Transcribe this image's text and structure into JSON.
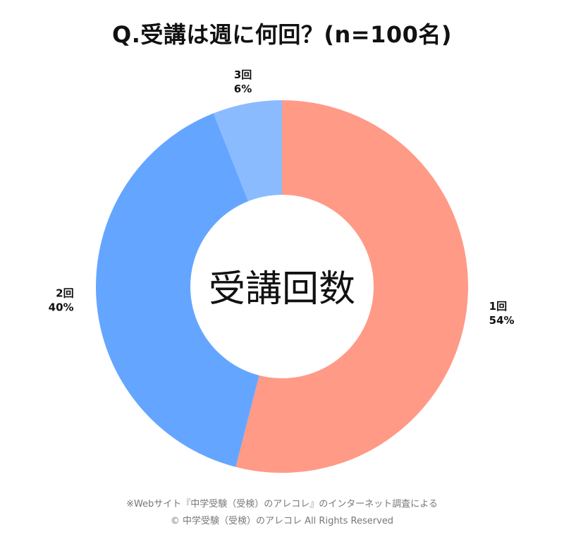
{
  "chart_data": {
    "type": "pie",
    "title": "Q.受講は週に何回？(n=100名)",
    "center_label": "受講回数",
    "slices": [
      {
        "label": "1回",
        "value": 54,
        "value_label": "54%",
        "color": "#FF9A87"
      },
      {
        "label": "2回",
        "value": 40,
        "value_label": "40%",
        "color": "#64A6FF"
      },
      {
        "label": "3回",
        "value": 6,
        "value_label": "6%",
        "color": "#8ABBFF"
      }
    ],
    "donut": true,
    "legend": "none",
    "start": "top",
    "direction": "clockwise"
  },
  "footer": {
    "note": "※Webサイト『中学受験（受検）のアレコレ』のインターネット調査による",
    "copyright": "© 中学受験（受検）のアレコレ All Rights Reserved"
  }
}
